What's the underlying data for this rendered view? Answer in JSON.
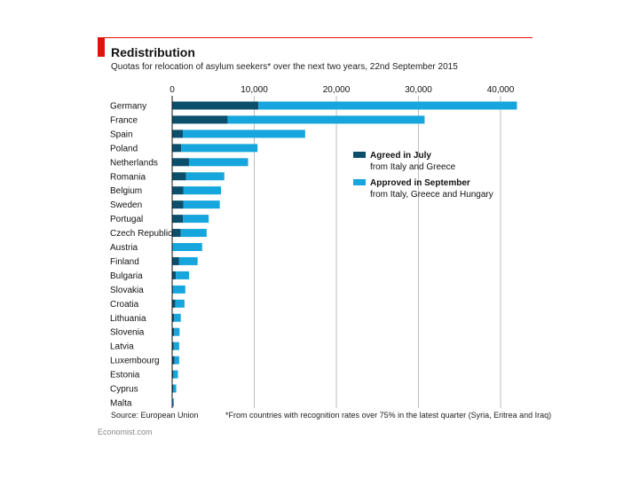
{
  "header": {
    "title": "Redistribution",
    "subtitle": "Quotas for relocation of asylum seekers* over the next two years, 22nd September 2015"
  },
  "footer": {
    "source": "Source: European Union",
    "footnote": "*From countries with recognition rates over 75% in the latest quarter (Syria, Eritrea and Iraq)",
    "brand": "Economist.com"
  },
  "colors": {
    "agreed": "#0b4f6c",
    "approved": "#16a6dd",
    "grid": "#bdbdbd",
    "accent": "#e3120b"
  },
  "chart_data": {
    "type": "bar",
    "orientation": "horizontal",
    "stacked": true,
    "title": "Redistribution",
    "subtitle": "Quotas for relocation of asylum seekers* over the next two years, 22nd September 2015",
    "xlim": [
      0,
      42000
    ],
    "x_ticks": [
      0,
      10000,
      20000,
      30000,
      40000
    ],
    "x_tick_labels": [
      "0",
      "10,000",
      "20,000",
      "30,000",
      "40,000"
    ],
    "x_axis_position": "top",
    "grid": true,
    "legend_position": "right",
    "categories": [
      "Germany",
      "France",
      "Spain",
      "Poland",
      "Netherlands",
      "Romania",
      "Belgium",
      "Sweden",
      "Portugal",
      "Czech Republic",
      "Austria",
      "Finland",
      "Bulgaria",
      "Slovakia",
      "Croatia",
      "Lithuania",
      "Slovenia",
      "Latvia",
      "Luxembourg",
      "Estonia",
      "Cyprus",
      "Malta"
    ],
    "series": [
      {
        "name": "Agreed in July",
        "note": "from Italy and Greece",
        "values": [
          10500,
          6750,
          1300,
          1100,
          2050,
          1700,
          1350,
          1350,
          1300,
          1050,
          0,
          850,
          450,
          100,
          400,
          250,
          250,
          200,
          300,
          150,
          150,
          60
        ]
      },
      {
        "name": "Approved in September",
        "note": "from Italy, Greece and Hungary",
        "values": [
          31500,
          24000,
          14900,
          9300,
          7200,
          4650,
          4600,
          4450,
          3150,
          3150,
          3650,
          2250,
          1600,
          1500,
          1100,
          800,
          650,
          650,
          550,
          550,
          350,
          150
        ]
      }
    ]
  }
}
